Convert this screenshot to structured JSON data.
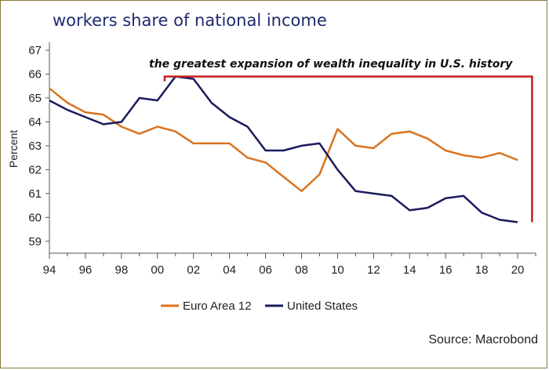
{
  "title": "workers share of national income",
  "annotation": "the greatest expansion of wealth inequality in U.S. history",
  "source": "Source: Macrobond",
  "colors": {
    "euro": "#d9731f",
    "us": "#1b1b5e",
    "annotation": "#c41e1e",
    "title": "#1f2a6e"
  },
  "chart_data": {
    "type": "line",
    "ylabel": "Percent",
    "ylim": [
      58.5,
      67.2
    ],
    "xlim": [
      1994,
      2021
    ],
    "y_ticks": [
      59,
      60,
      61,
      62,
      63,
      64,
      65,
      66,
      67
    ],
    "x_ticks": [
      "94",
      "96",
      "98",
      "00",
      "02",
      "04",
      "06",
      "08",
      "10",
      "12",
      "14",
      "16",
      "18",
      "20"
    ],
    "grid": false,
    "legend_position": "bottom",
    "series": [
      {
        "name": "Euro Area 12",
        "x": [
          1994,
          1995,
          1996,
          1997,
          1998,
          1999,
          2000,
          2001,
          2002,
          2003,
          2004,
          2005,
          2006,
          2007,
          2008,
          2009,
          2010,
          2011,
          2012,
          2013,
          2014,
          2015,
          2016,
          2017,
          2018,
          2019,
          2020
        ],
        "values": [
          65.4,
          64.8,
          64.4,
          64.3,
          63.8,
          63.5,
          63.8,
          63.6,
          63.1,
          63.1,
          63.1,
          62.5,
          62.3,
          61.7,
          61.1,
          61.8,
          63.7,
          63.0,
          62.9,
          63.5,
          63.6,
          63.3,
          62.8,
          62.6,
          62.5,
          62.7,
          62.4
        ]
      },
      {
        "name": "United States",
        "x": [
          1994,
          1995,
          1996,
          1997,
          1998,
          1999,
          2000,
          2001,
          2002,
          2003,
          2004,
          2005,
          2006,
          2007,
          2008,
          2009,
          2010,
          2011,
          2012,
          2013,
          2014,
          2015,
          2016,
          2017,
          2018,
          2019,
          2020
        ],
        "values": [
          64.9,
          64.5,
          64.2,
          63.9,
          64.0,
          65.0,
          64.9,
          65.9,
          65.8,
          64.8,
          64.2,
          63.8,
          62.8,
          62.8,
          63.0,
          63.1,
          62.0,
          61.1,
          61.0,
          60.9,
          60.3,
          60.4,
          60.8,
          60.9,
          60.2,
          59.9,
          59.8
        ]
      }
    ]
  }
}
